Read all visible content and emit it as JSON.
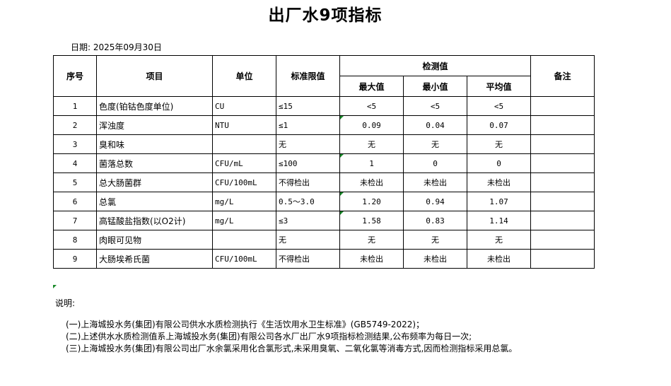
{
  "title": "出厂水9项指标",
  "date": "日期: 2025年09月30日",
  "headers": {
    "no": "序号",
    "item": "项目",
    "unit": "单位",
    "limit": "标准限值",
    "measured": "检测值",
    "max": "最大值",
    "min": "最小值",
    "avg": "平均值",
    "remark": "备注"
  },
  "rows": [
    {
      "no": "1",
      "item": "色度(铂钴色度单位)",
      "unit": "CU",
      "limit": "≤15",
      "max": "<5",
      "min": "<5",
      "avg": "<5"
    },
    {
      "no": "2",
      "item": "浑浊度",
      "unit": "NTU",
      "limit": "≤1",
      "max": "0.09",
      "min": "0.04",
      "avg": "0.07"
    },
    {
      "no": "3",
      "item": "臭和味",
      "unit": "",
      "limit": "无",
      "max": "无",
      "min": "无",
      "avg": "无"
    },
    {
      "no": "4",
      "item": "菌落总数",
      "unit": "CFU/mL",
      "limit": "≤100",
      "max": "1",
      "min": "0",
      "avg": "0"
    },
    {
      "no": "5",
      "item": "总大肠菌群",
      "unit": "CFU/100mL",
      "limit": "不得检出",
      "max": "未检出",
      "min": "未检出",
      "avg": "未检出"
    },
    {
      "no": "6",
      "item": "总氯",
      "unit": "mg/L",
      "limit": "0.5～3.0",
      "max": "1.20",
      "min": "0.94",
      "avg": "1.07"
    },
    {
      "no": "7",
      "item": "高锰酸盐指数(以O2计)",
      "unit": "mg/L",
      "limit": "≤3",
      "max": "1.58",
      "min": "0.83",
      "avg": "1.14"
    },
    {
      "no": "8",
      "item": "肉眼可见物",
      "unit": "",
      "limit": "无",
      "max": "无",
      "min": "无",
      "avg": "无"
    },
    {
      "no": "9",
      "item": "大肠埃希氏菌",
      "unit": "CFU/100mL",
      "limit": "不得检出",
      "max": "未检出",
      "min": "未检出",
      "avg": "未检出"
    }
  ],
  "notes_label": "说明:",
  "notes": [
    "(一)上海城投水务(集团)有限公司供水水质检测执行《生活饮用水卫生标准》(GB5749-2022)；",
    "(二)上述供水水质检测值系上海城投水务(集团)有限公司各水厂出厂水9项指标检测结果,公布频率为每日一次;",
    "(三)上海城投水务(集团)有限公司出厂水余氯采用化合氯形式,未采用臭氧、二氧化氯等消毒方式,因而检测指标采用总氯。"
  ]
}
